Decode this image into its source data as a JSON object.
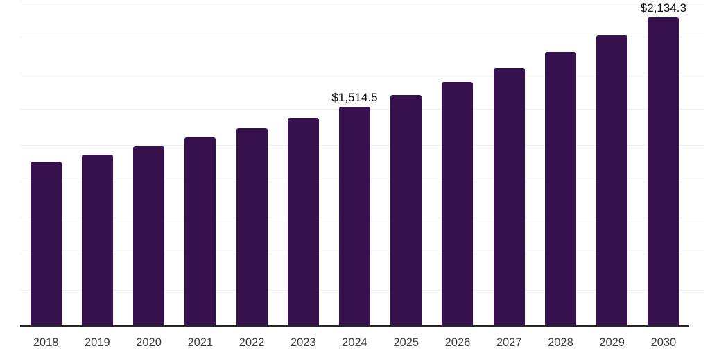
{
  "chart_data": {
    "type": "bar",
    "title": "",
    "xlabel": "",
    "ylabel": "",
    "categories": [
      "2018",
      "2019",
      "2020",
      "2021",
      "2022",
      "2023",
      "2024",
      "2025",
      "2026",
      "2027",
      "2028",
      "2029",
      "2030"
    ],
    "values": [
      1135.0,
      1187.0,
      1243.0,
      1303.0,
      1367.0,
      1439.0,
      1514.5,
      1597.0,
      1688.0,
      1784.0,
      1895.0,
      2009.0,
      2134.3
    ],
    "data_labels": [
      null,
      null,
      null,
      null,
      null,
      null,
      "$1,514.5",
      null,
      null,
      null,
      null,
      null,
      "$2,134.3"
    ],
    "ylim": [
      0,
      2250
    ],
    "gridline_step": 250,
    "grid": "horizontal-only",
    "legend": "none",
    "colors": {
      "bar": "#36114E",
      "axis_line": "#262626",
      "gridline": "#EFEFF0",
      "tick_label": "#3A3A3A",
      "data_label": "#0D0D0D",
      "background": "#FFFFFF"
    }
  }
}
